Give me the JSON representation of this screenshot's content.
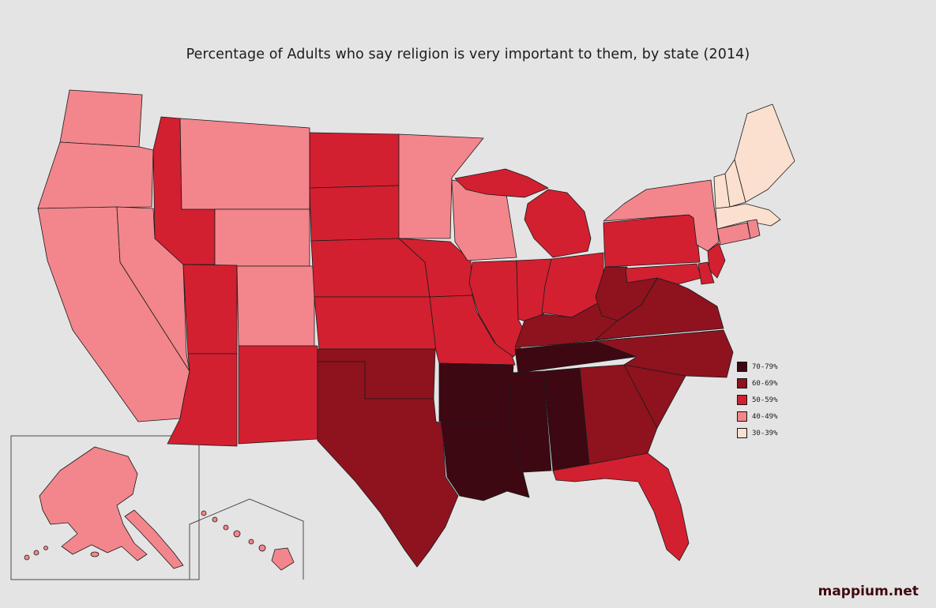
{
  "title": "Percentage of Adults who say religion is very important to them, by state (2014)",
  "watermark": "mappium.net",
  "colors": {
    "background": "#e4e4e4",
    "state_border": "#1b1b1b",
    "watermark": "#40090f"
  },
  "legend": {
    "items": [
      {
        "label": "70-79%",
        "color": "#3d0812"
      },
      {
        "label": "60-69%",
        "color": "#8e131f"
      },
      {
        "label": "50-59%",
        "color": "#d22030"
      },
      {
        "label": "40-49%",
        "color": "#f2868c"
      },
      {
        "label": "30-39%",
        "color": "#fbe0cf"
      }
    ]
  },
  "map": {
    "insets": [
      "Alaska",
      "Hawaii"
    ],
    "states": [
      {
        "id": "AL",
        "name": "Alabama",
        "value": "70-79%"
      },
      {
        "id": "AK",
        "name": "Alaska",
        "value": "40-49%"
      },
      {
        "id": "AZ",
        "name": "Arizona",
        "value": "50-59%"
      },
      {
        "id": "AR",
        "name": "Arkansas",
        "value": "70-79%"
      },
      {
        "id": "CA",
        "name": "California",
        "value": "40-49%"
      },
      {
        "id": "CO",
        "name": "Colorado",
        "value": "40-49%"
      },
      {
        "id": "CT",
        "name": "Connecticut",
        "value": "40-49%"
      },
      {
        "id": "DE",
        "name": "Delaware",
        "value": "50-59%"
      },
      {
        "id": "FL",
        "name": "Florida",
        "value": "50-59%"
      },
      {
        "id": "GA",
        "name": "Georgia",
        "value": "60-69%"
      },
      {
        "id": "HI",
        "name": "Hawaii",
        "value": "40-49%"
      },
      {
        "id": "ID",
        "name": "Idaho",
        "value": "50-59%"
      },
      {
        "id": "IL",
        "name": "Illinois",
        "value": "50-59%"
      },
      {
        "id": "IN",
        "name": "Indiana",
        "value": "50-59%"
      },
      {
        "id": "IA",
        "name": "Iowa",
        "value": "50-59%"
      },
      {
        "id": "KS",
        "name": "Kansas",
        "value": "50-59%"
      },
      {
        "id": "KY",
        "name": "Kentucky",
        "value": "60-69%"
      },
      {
        "id": "LA",
        "name": "Louisiana",
        "value": "70-79%"
      },
      {
        "id": "ME",
        "name": "Maine",
        "value": "30-39%"
      },
      {
        "id": "MD",
        "name": "Maryland",
        "value": "50-59%"
      },
      {
        "id": "MA",
        "name": "Massachusetts",
        "value": "30-39%"
      },
      {
        "id": "MI",
        "name": "Michigan",
        "value": "50-59%"
      },
      {
        "id": "MN",
        "name": "Minnesota",
        "value": "40-49%"
      },
      {
        "id": "MS",
        "name": "Mississippi",
        "value": "70-79%"
      },
      {
        "id": "MO",
        "name": "Missouri",
        "value": "50-59%"
      },
      {
        "id": "MT",
        "name": "Montana",
        "value": "40-49%"
      },
      {
        "id": "NE",
        "name": "Nebraska",
        "value": "50-59%"
      },
      {
        "id": "NV",
        "name": "Nevada",
        "value": "40-49%"
      },
      {
        "id": "NH",
        "name": "New Hampshire",
        "value": "30-39%"
      },
      {
        "id": "NJ",
        "name": "New Jersey",
        "value": "50-59%"
      },
      {
        "id": "NM",
        "name": "New Mexico",
        "value": "50-59%"
      },
      {
        "id": "NY",
        "name": "New York",
        "value": "40-49%"
      },
      {
        "id": "NC",
        "name": "North Carolina",
        "value": "60-69%"
      },
      {
        "id": "ND",
        "name": "North Dakota",
        "value": "50-59%"
      },
      {
        "id": "OH",
        "name": "Ohio",
        "value": "50-59%"
      },
      {
        "id": "OK",
        "name": "Oklahoma",
        "value": "60-69%"
      },
      {
        "id": "OR",
        "name": "Oregon",
        "value": "40-49%"
      },
      {
        "id": "PA",
        "name": "Pennsylvania",
        "value": "50-59%"
      },
      {
        "id": "RI",
        "name": "Rhode Island",
        "value": "40-49%"
      },
      {
        "id": "SC",
        "name": "South Carolina",
        "value": "60-69%"
      },
      {
        "id": "SD",
        "name": "South Dakota",
        "value": "50-59%"
      },
      {
        "id": "TN",
        "name": "Tennessee",
        "value": "70-79%"
      },
      {
        "id": "TX",
        "name": "Texas",
        "value": "60-69%"
      },
      {
        "id": "UT",
        "name": "Utah",
        "value": "50-59%"
      },
      {
        "id": "VT",
        "name": "Vermont",
        "value": "30-39%"
      },
      {
        "id": "VA",
        "name": "Virginia",
        "value": "60-69%"
      },
      {
        "id": "WA",
        "name": "Washington",
        "value": "40-49%"
      },
      {
        "id": "WV",
        "name": "West Virginia",
        "value": "60-69%"
      },
      {
        "id": "WI",
        "name": "Wisconsin",
        "value": "40-49%"
      },
      {
        "id": "WY",
        "name": "Wyoming",
        "value": "40-49%"
      }
    ]
  }
}
